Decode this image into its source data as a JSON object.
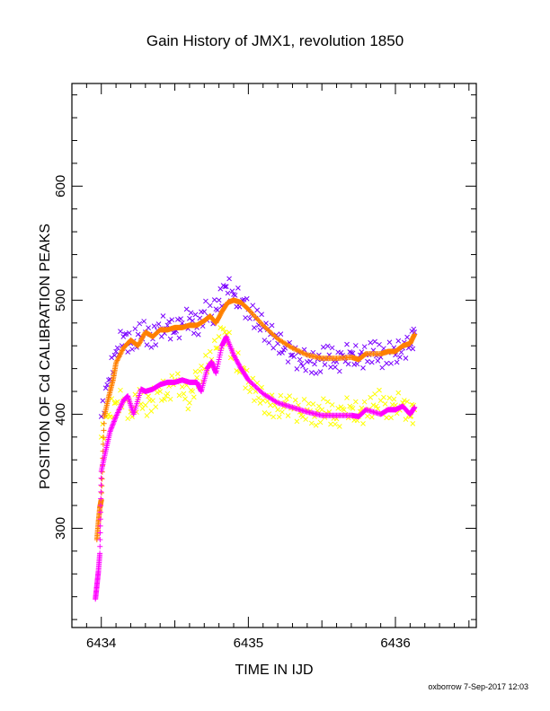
{
  "chart_data": {
    "type": "scatter",
    "title": "Gain History of JMX1, revolution 1850",
    "xlabel": "TIME IN IJD",
    "ylabel": "POSITION OF Cd CALIBRATION PEAKS",
    "footer": "oxborrow  7-Sep-2017 12:03",
    "xlim": [
      6433.8,
      6436.55
    ],
    "ylim": [
      213,
      690
    ],
    "xticks": [
      6434,
      6435,
      6436
    ],
    "yticks": [
      300,
      400,
      500,
      600
    ],
    "grid": false,
    "legend": "none",
    "series": [
      {
        "marker": "x",
        "color": "#7a00ff",
        "style": "scatter",
        "points": [
          [
            6434.0,
            398
          ],
          [
            6434.05,
            430
          ],
          [
            6434.1,
            455
          ],
          [
            6434.15,
            468
          ],
          [
            6434.2,
            462
          ],
          [
            6434.25,
            470
          ],
          [
            6434.3,
            472
          ],
          [
            6434.35,
            466
          ],
          [
            6434.4,
            475
          ],
          [
            6434.45,
            478
          ],
          [
            6434.5,
            472
          ],
          [
            6434.55,
            480
          ],
          [
            6434.6,
            484
          ],
          [
            6434.65,
            476
          ],
          [
            6434.7,
            490
          ],
          [
            6434.75,
            486
          ],
          [
            6434.8,
            500
          ],
          [
            6434.85,
            512
          ],
          [
            6434.9,
            505
          ],
          [
            6434.95,
            498
          ],
          [
            6435.0,
            492
          ],
          [
            6435.05,
            484
          ],
          [
            6435.1,
            476
          ],
          [
            6435.15,
            470
          ],
          [
            6435.2,
            462
          ],
          [
            6435.25,
            458
          ],
          [
            6435.3,
            452
          ],
          [
            6435.35,
            448
          ],
          [
            6435.4,
            446
          ],
          [
            6435.45,
            444
          ],
          [
            6435.5,
            448
          ],
          [
            6435.55,
            452
          ],
          [
            6435.6,
            446
          ],
          [
            6435.65,
            450
          ],
          [
            6435.7,
            454
          ],
          [
            6435.75,
            448
          ],
          [
            6435.8,
            452
          ],
          [
            6435.85,
            456
          ],
          [
            6435.9,
            450
          ],
          [
            6435.95,
            454
          ],
          [
            6436.0,
            452
          ],
          [
            6436.05,
            458
          ],
          [
            6436.1,
            460
          ],
          [
            6436.13,
            472
          ]
        ]
      },
      {
        "marker": "x",
        "color": "#ffff00",
        "style": "scatter",
        "points": [
          [
            6434.0,
            380
          ],
          [
            6434.05,
            400
          ],
          [
            6434.1,
            410
          ],
          [
            6434.15,
            412
          ],
          [
            6434.2,
            402
          ],
          [
            6434.25,
            414
          ],
          [
            6434.3,
            408
          ],
          [
            6434.35,
            412
          ],
          [
            6434.4,
            420
          ],
          [
            6434.45,
            418
          ],
          [
            6434.5,
            430
          ],
          [
            6434.55,
            424
          ],
          [
            6434.6,
            410
          ],
          [
            6434.65,
            432
          ],
          [
            6434.7,
            440
          ],
          [
            6434.75,
            448
          ],
          [
            6434.8,
            468
          ],
          [
            6434.85,
            470
          ],
          [
            6434.9,
            450
          ],
          [
            6434.95,
            440
          ],
          [
            6435.0,
            428
          ],
          [
            6435.05,
            420
          ],
          [
            6435.1,
            412
          ],
          [
            6435.15,
            408
          ],
          [
            6435.2,
            404
          ],
          [
            6435.25,
            410
          ],
          [
            6435.3,
            406
          ],
          [
            6435.35,
            402
          ],
          [
            6435.4,
            404
          ],
          [
            6435.45,
            398
          ],
          [
            6435.5,
            404
          ],
          [
            6435.55,
            402
          ],
          [
            6435.6,
            396
          ],
          [
            6435.65,
            404
          ],
          [
            6435.7,
            406
          ],
          [
            6435.75,
            398
          ],
          [
            6435.8,
            404
          ],
          [
            6435.85,
            408
          ],
          [
            6435.9,
            412
          ],
          [
            6435.95,
            404
          ],
          [
            6436.0,
            408
          ],
          [
            6436.05,
            410
          ],
          [
            6436.1,
            398
          ],
          [
            6436.13,
            404
          ]
        ]
      },
      {
        "marker": "+",
        "color": "#ff8000",
        "style": "dense",
        "points": [
          [
            6433.97,
            290
          ],
          [
            6433.98,
            305
          ],
          [
            6433.99,
            318
          ],
          [
            6434.0,
            325
          ],
          [
            6434.02,
            398
          ],
          [
            6434.05,
            415
          ],
          [
            6434.08,
            430
          ],
          [
            6434.1,
            445
          ],
          [
            6434.15,
            458
          ],
          [
            6434.2,
            465
          ],
          [
            6434.25,
            460
          ],
          [
            6434.3,
            472
          ],
          [
            6434.35,
            468
          ],
          [
            6434.4,
            474
          ],
          [
            6434.45,
            474
          ],
          [
            6434.5,
            476
          ],
          [
            6434.55,
            476
          ],
          [
            6434.6,
            478
          ],
          [
            6434.65,
            478
          ],
          [
            6434.7,
            482
          ],
          [
            6434.74,
            486
          ],
          [
            6434.78,
            480
          ],
          [
            6434.82,
            490
          ],
          [
            6434.86,
            498
          ],
          [
            6434.9,
            500
          ],
          [
            6434.95,
            498
          ],
          [
            6435.0,
            492
          ],
          [
            6435.1,
            478
          ],
          [
            6435.2,
            466
          ],
          [
            6435.3,
            458
          ],
          [
            6435.4,
            452
          ],
          [
            6435.5,
            449
          ],
          [
            6435.6,
            449
          ],
          [
            6435.7,
            450
          ],
          [
            6435.75,
            448
          ],
          [
            6435.8,
            453
          ],
          [
            6435.9,
            453
          ],
          [
            6435.95,
            455
          ],
          [
            6436.0,
            455
          ],
          [
            6436.05,
            460
          ],
          [
            6436.1,
            462
          ],
          [
            6436.13,
            470
          ]
        ]
      },
      {
        "marker": "+",
        "color": "#ff00ff",
        "style": "dense",
        "points": [
          [
            6433.96,
            238
          ],
          [
            6433.97,
            250
          ],
          [
            6433.98,
            262
          ],
          [
            6433.99,
            278
          ],
          [
            6434.0,
            350
          ],
          [
            6434.03,
            368
          ],
          [
            6434.06,
            385
          ],
          [
            6434.1,
            398
          ],
          [
            6434.15,
            412
          ],
          [
            6434.18,
            416
          ],
          [
            6434.22,
            400
          ],
          [
            6434.27,
            422
          ],
          [
            6434.3,
            420
          ],
          [
            6434.35,
            422
          ],
          [
            6434.4,
            426
          ],
          [
            6434.45,
            428
          ],
          [
            6434.5,
            428
          ],
          [
            6434.55,
            430
          ],
          [
            6434.6,
            428
          ],
          [
            6434.65,
            428
          ],
          [
            6434.68,
            420
          ],
          [
            6434.72,
            440
          ],
          [
            6434.75,
            446
          ],
          [
            6434.78,
            436
          ],
          [
            6434.82,
            460
          ],
          [
            6434.85,
            468
          ],
          [
            6434.9,
            452
          ],
          [
            6434.95,
            440
          ],
          [
            6435.0,
            430
          ],
          [
            6435.1,
            418
          ],
          [
            6435.2,
            410
          ],
          [
            6435.3,
            406
          ],
          [
            6435.4,
            402
          ],
          [
            6435.5,
            399
          ],
          [
            6435.6,
            399
          ],
          [
            6435.7,
            399
          ],
          [
            6435.75,
            398
          ],
          [
            6435.8,
            404
          ],
          [
            6435.9,
            400
          ],
          [
            6435.95,
            404
          ],
          [
            6436.0,
            404
          ],
          [
            6436.05,
            407
          ],
          [
            6436.1,
            400
          ],
          [
            6436.13,
            406
          ]
        ]
      }
    ]
  }
}
